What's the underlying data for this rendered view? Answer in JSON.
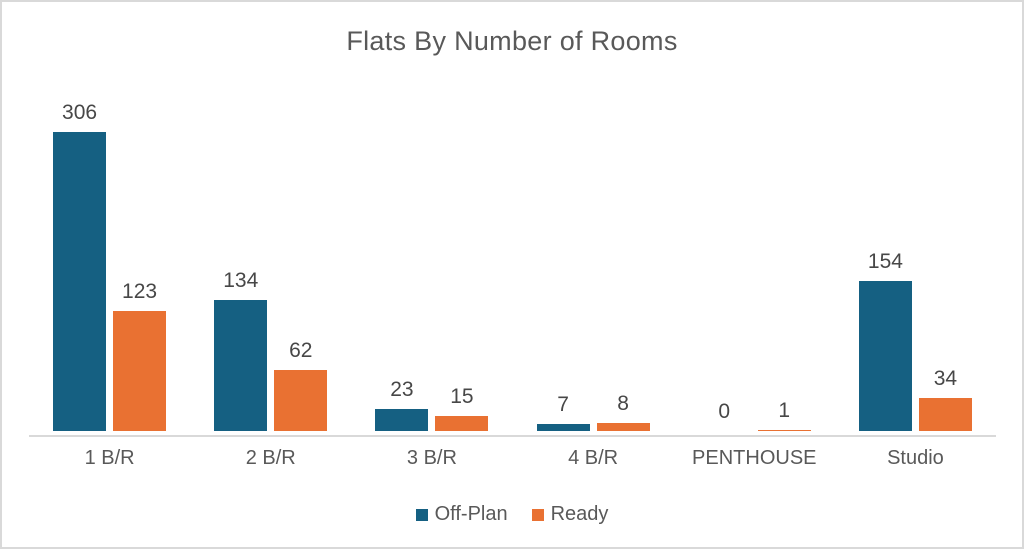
{
  "chart_data": {
    "type": "bar",
    "title": "Flats By Number of Rooms",
    "categories": [
      "1 B/R",
      "2 B/R",
      "3 B/R",
      "4 B/R",
      "PENTHOUSE",
      "Studio"
    ],
    "series": [
      {
        "name": "Off-Plan",
        "color": "#156082",
        "values": [
          306,
          134,
          23,
          7,
          0,
          154
        ]
      },
      {
        "name": "Ready",
        "color": "#E97132",
        "values": [
          123,
          62,
          15,
          8,
          1,
          34
        ]
      }
    ],
    "value_labels_shown": true,
    "legend_position": "bottom",
    "grid": false,
    "y_axis_shown": false,
    "ylim": [
      0,
      306
    ],
    "colors": {
      "title_text": "#595959",
      "data_label_text": "#474747",
      "category_text": "#595959",
      "axis_line": "#d9d9d9",
      "frame_border": "#d9d9d9",
      "background": "#ffffff"
    }
  }
}
